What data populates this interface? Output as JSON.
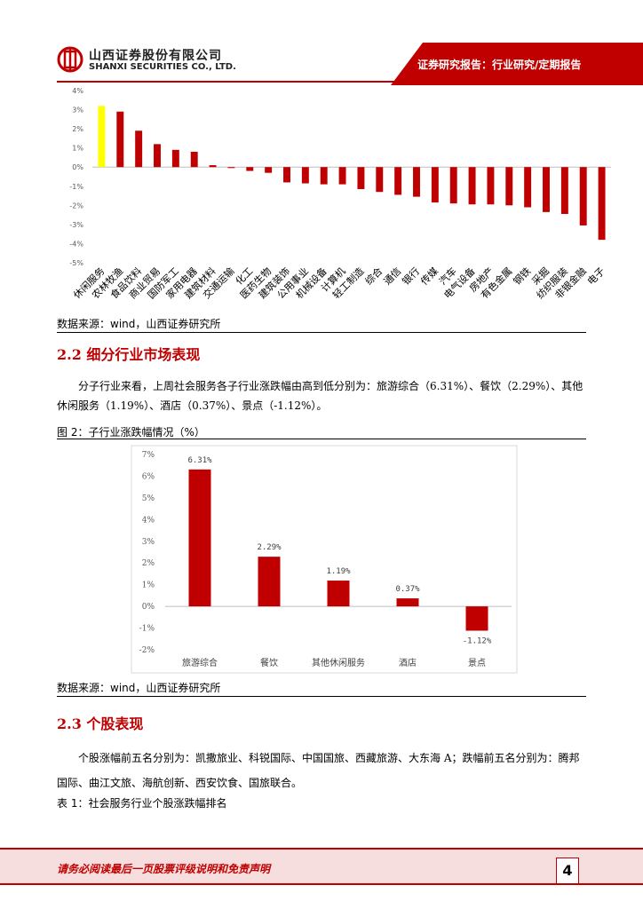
{
  "header": {
    "company_cn": "山西证券股份有限公司",
    "company_en": "SHANXI SECURITIES CO., LTD.",
    "report_type": "证券研究报告：行业研究/定期报告",
    "logo_icon": "shanxi-securities-logo-icon",
    "accent": "#c00000"
  },
  "chart_data": [
    {
      "type": "bar",
      "categories": [
        "休闲服务",
        "农林牧渔",
        "食品饮料",
        "商业贸易",
        "国防军工",
        "家用电器",
        "建筑材料",
        "交通运输",
        "化工",
        "医药生物",
        "建筑装饰",
        "公用事业",
        "机械设备",
        "计算机",
        "轻工制造",
        "综合",
        "通信",
        "银行",
        "传媒",
        "汽车",
        "电气设备",
        "房地产",
        "有色金属",
        "钢铁",
        "采掘",
        "纺织服装",
        "非银金融",
        "电子"
      ],
      "values": [
        3.2,
        2.9,
        1.9,
        1.2,
        0.9,
        0.8,
        0.1,
        -0.05,
        -0.2,
        -0.3,
        -0.8,
        -0.85,
        -0.9,
        -0.9,
        -1.15,
        -1.3,
        -1.45,
        -1.55,
        -1.85,
        -1.9,
        -1.95,
        -1.95,
        -2.0,
        -2.1,
        -2.35,
        -2.45,
        -3.05,
        -3.8
      ],
      "highlight_index": 0,
      "highlight_color": "#ffff00",
      "bar_color": "#c00000",
      "ylim": [
        -5,
        4
      ],
      "yticks": [
        "4%",
        "3%",
        "2%",
        "1%",
        "0%",
        "-1%",
        "-2%",
        "-3%",
        "-4%",
        "-5%"
      ],
      "source": "数据来源：wind，山西证券研究所"
    },
    {
      "type": "bar",
      "title": "图 2：子行业涨跌幅情况（%）",
      "categories": [
        "旅游综合",
        "餐饮",
        "其他休闲服务",
        "酒店",
        "景点"
      ],
      "values": [
        6.31,
        2.29,
        1.19,
        0.37,
        -1.12
      ],
      "data_labels": [
        "6.31%",
        "2.29%",
        "1.19%",
        "0.37%",
        "-1.12%"
      ],
      "bar_color": "#c00000",
      "ylim": [
        -2,
        7
      ],
      "yticks": [
        "7%",
        "6%",
        "5%",
        "4%",
        "3%",
        "2%",
        "1%",
        "0%",
        "-1%",
        "-2%"
      ],
      "source": "数据来源：wind，山西证券研究所"
    }
  ],
  "section_22": {
    "heading": "2.2 细分行业市场表现",
    "paragraph": "分子行业来看，上周社会服务各子行业涨跌幅由高到低分别为：旅游综合（6.31%）、餐饮（2.29%）、其他休闲服务（1.19%）、酒店（0.37%）、景点（-1.12%）。"
  },
  "section_23": {
    "heading": "2.3 个股表现",
    "paragraph": "个股涨幅前五名分别为：凯撒旅业、科锐国际、中国国旅、西藏旅游、大东海 A；跌幅前五名分别为：腾邦国际、曲江文旅、海航创新、西安饮食、国旅联合。",
    "table_caption": "表 1：社会服务行业个股涨跌幅排名"
  },
  "footer": {
    "disclaimer": "请务必阅读最后一页股票评级说明和免责声明",
    "page_number": "4"
  }
}
